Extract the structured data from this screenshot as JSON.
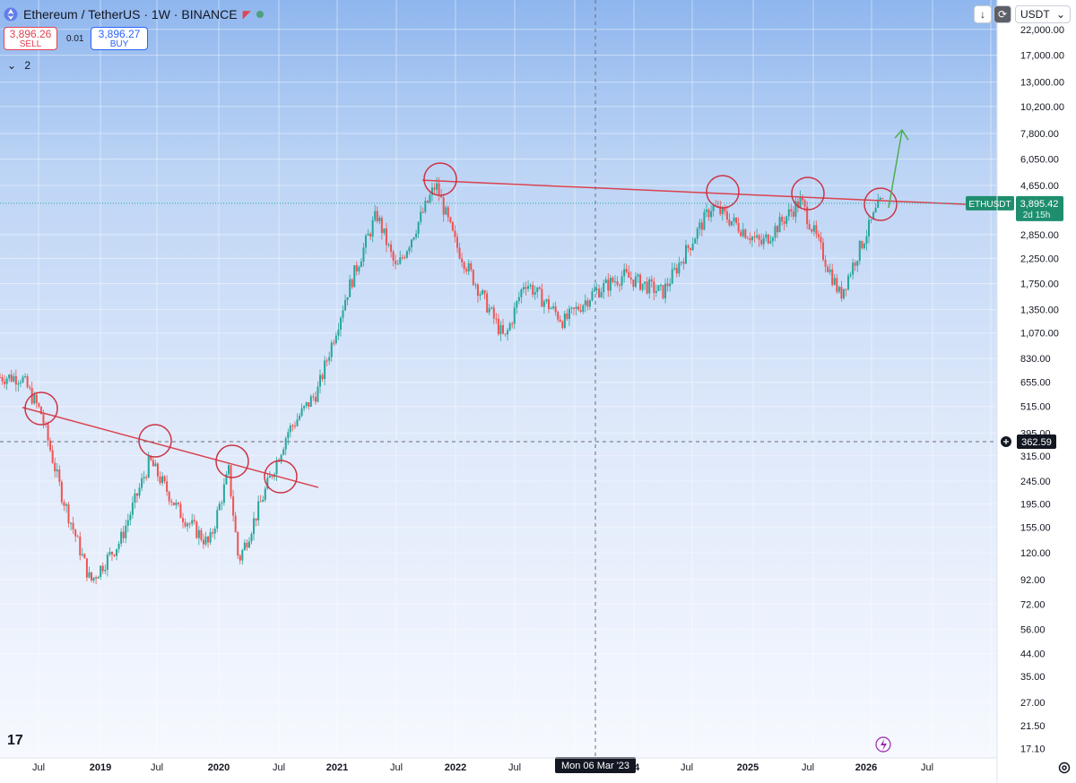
{
  "header": {
    "symbol_title": "Ethereum / TetherUS · 1W · BINANCE",
    "sell_price": "3,896.26",
    "sell_label": "SELL",
    "spread": "0.01",
    "buy_price": "3,896.27",
    "buy_label": "BUY",
    "indicator_count": "2"
  },
  "toolbar": {
    "currency_select": "USDT"
  },
  "price_axis": {
    "labels": [
      "22,000.00",
      "17,000.00",
      "13,000.00",
      "10,200.00",
      "7,800.00",
      "6,050.00",
      "4,650.00",
      "2,850.00",
      "2,250.00",
      "1,750.00",
      "1,350.00",
      "1,070.00",
      "830.00",
      "655.00",
      "515.00",
      "395.00",
      "315.00",
      "245.00",
      "195.00",
      "155.00",
      "120.00",
      "92.00",
      "72.00",
      "56.00",
      "44.00",
      "35.00",
      "27.00",
      "21.50",
      "17.10"
    ],
    "current_symbol_label": "ETHUSDT",
    "current_price": "3,895.42",
    "countdown": "2d 15h",
    "crosshair_price": "362.59"
  },
  "time_axis": {
    "labels": [
      "Jul",
      "2019",
      "Jul",
      "2020",
      "Jul",
      "2021",
      "Jul",
      "2022",
      "Jul",
      "Jul",
      "2024",
      "Jul",
      "2025",
      "Jul",
      "2026",
      "Jul"
    ],
    "crosshair_date": "Mon 06 Mar '23"
  },
  "colors": {
    "up": "#26a69a",
    "down": "#ef5350",
    "trendline": "#d9434e",
    "arrow": "#4caf50",
    "circle": "#cc3344"
  },
  "chart_data": {
    "type": "candlestick",
    "symbol": "ETHUSDT",
    "interval": "1W",
    "scale": "log",
    "ylim": [
      17.1,
      22000
    ],
    "approx_weekly_closes": [
      {
        "date": "2018-05",
        "close": 690
      },
      {
        "date": "2018-07",
        "close": 480
      },
      {
        "date": "2018-09",
        "close": 220
      },
      {
        "date": "2018-12",
        "close": 90
      },
      {
        "date": "2019-03",
        "close": 135
      },
      {
        "date": "2019-06",
        "close": 300
      },
      {
        "date": "2019-09",
        "close": 180
      },
      {
        "date": "2019-12",
        "close": 130
      },
      {
        "date": "2020-02",
        "close": 270
      },
      {
        "date": "2020-03",
        "close": 110
      },
      {
        "date": "2020-06",
        "close": 240
      },
      {
        "date": "2020-08",
        "close": 400
      },
      {
        "date": "2020-11",
        "close": 600
      },
      {
        "date": "2021-02",
        "close": 1600
      },
      {
        "date": "2021-05",
        "close": 3500
      },
      {
        "date": "2021-07",
        "close": 2000
      },
      {
        "date": "2021-11",
        "close": 4700
      },
      {
        "date": "2022-01",
        "close": 2600
      },
      {
        "date": "2022-06",
        "close": 1000
      },
      {
        "date": "2022-08",
        "close": 1800
      },
      {
        "date": "2022-12",
        "close": 1200
      },
      {
        "date": "2023-03",
        "close": 1600
      },
      {
        "date": "2023-06",
        "close": 1900
      },
      {
        "date": "2023-10",
        "close": 1600
      },
      {
        "date": "2024-03",
        "close": 3800
      },
      {
        "date": "2024-08",
        "close": 2600
      },
      {
        "date": "2024-12",
        "close": 4000
      },
      {
        "date": "2025-04",
        "close": 1550
      },
      {
        "date": "2025-06",
        "close": 2500
      },
      {
        "date": "2025-08",
        "close": 3895
      }
    ],
    "annotations": {
      "descending_trendline": [
        {
          "date": "2018-06",
          "price": 510
        },
        {
          "date": "2020-11",
          "price": 230
        }
      ],
      "resistance_line": [
        {
          "date": "2021-11",
          "price": 4900
        },
        {
          "date": "2026-08",
          "price": 3850
        }
      ],
      "circled_touches_count": 8,
      "arrow_target_price": 8000
    }
  }
}
